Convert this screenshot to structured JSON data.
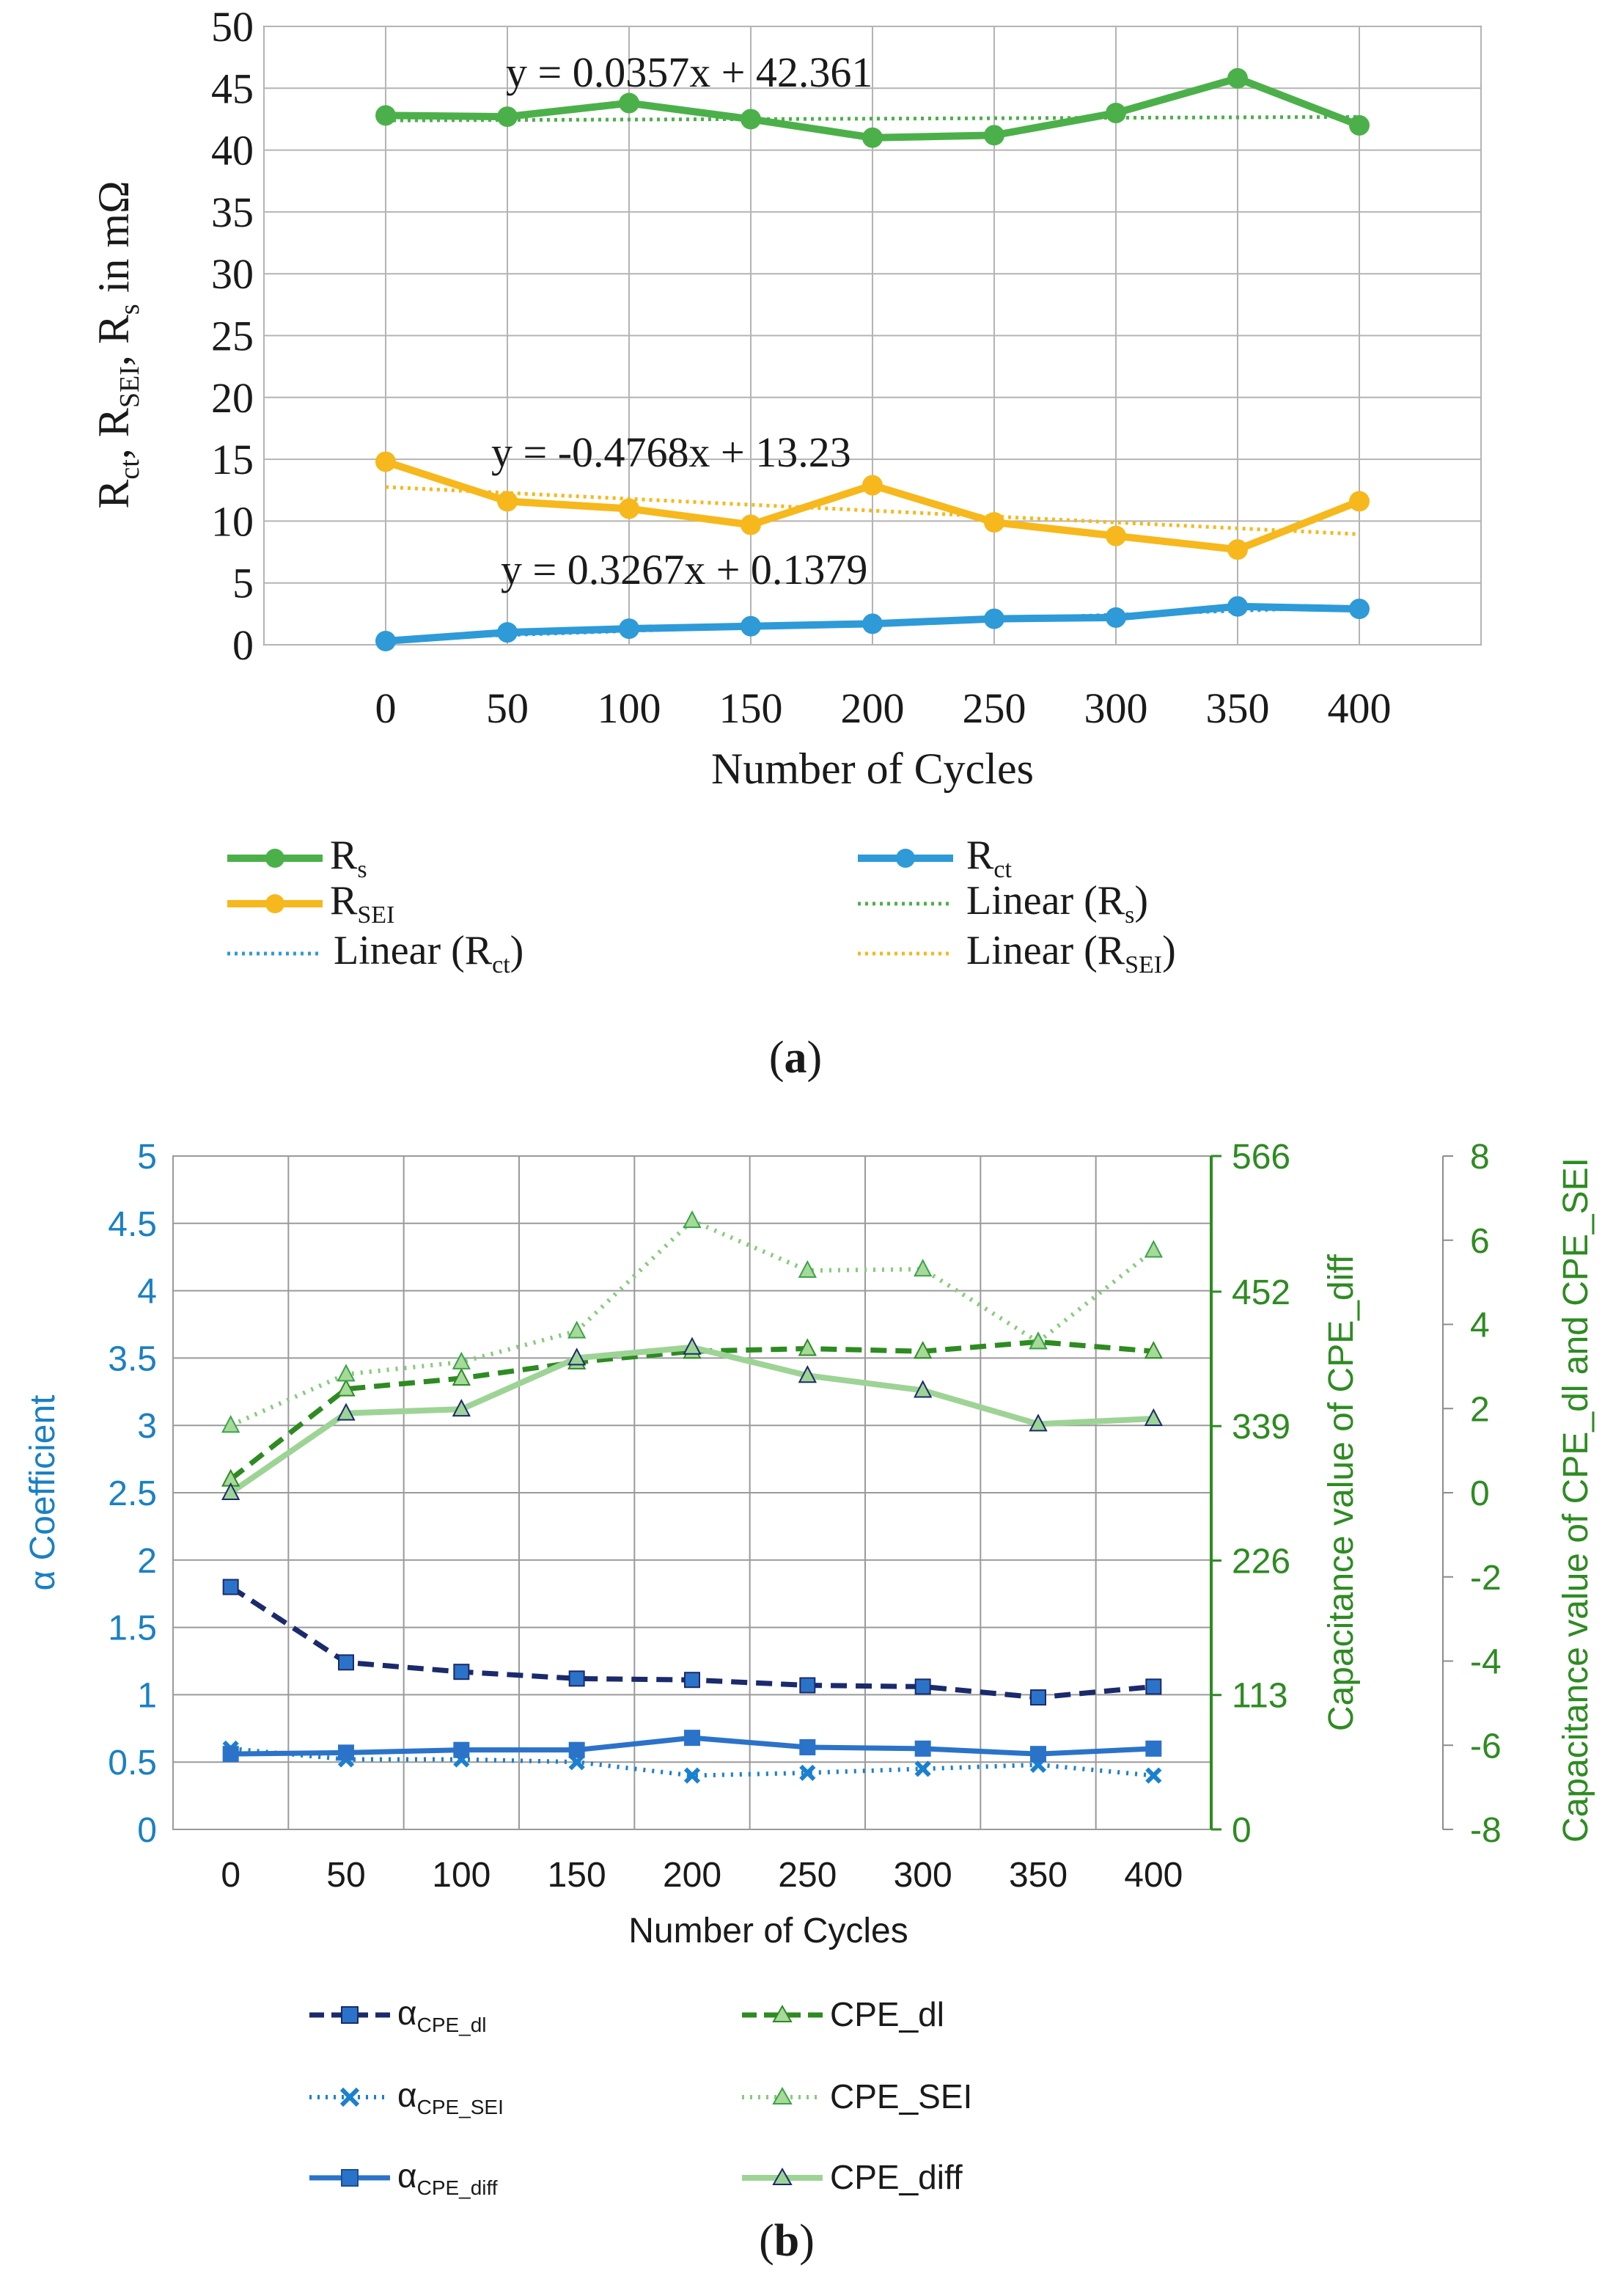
{
  "chart_data": [
    {
      "panel": "(a)",
      "type": "line",
      "title": "",
      "xlabel": "Number of Cycles",
      "ylabel": "R_ct, R_SEI, R_s in mΩ",
      "x": [
        0,
        50,
        100,
        150,
        200,
        250,
        300,
        350,
        400
      ],
      "xticks": [
        "0",
        "50",
        "100",
        "150",
        "200",
        "250",
        "300",
        "350",
        "400"
      ],
      "yticks": [
        "0",
        "5",
        "10",
        "15",
        "20",
        "25",
        "30",
        "35",
        "40",
        "45",
        "50"
      ],
      "ylim": [
        0,
        50
      ],
      "grid": true,
      "legend_position": "bottom",
      "series": [
        {
          "name": "Rs",
          "label_main": "R",
          "label_sub": "s",
          "color": "#4cb04a",
          "style": "solid-marker",
          "values": [
            42.8,
            42.7,
            43.8,
            42.5,
            41.0,
            41.2,
            43.0,
            45.8,
            42.0
          ]
        },
        {
          "name": "RSEI",
          "label_main": "R",
          "label_sub": "SEI",
          "color": "#f6b81c",
          "style": "solid-marker",
          "values": [
            14.8,
            11.6,
            11.0,
            9.7,
            12.9,
            9.9,
            8.8,
            7.7,
            11.6
          ]
        },
        {
          "name": "Rct",
          "label_main": "R",
          "label_sub": "ct",
          "color": "#2e9ad8",
          "style": "solid-marker",
          "values": [
            0.3,
            1.0,
            1.3,
            1.5,
            1.7,
            2.1,
            2.2,
            3.1,
            2.9
          ]
        }
      ],
      "trendlines": [
        {
          "name": "Linear (Rs)",
          "label_main": "Linear (R",
          "label_sub": "s",
          "label_end": ")",
          "color": "#4cb04a",
          "slope": 0.0357,
          "intercept": 42.361,
          "equation": "y = 0.0357x + 42.361"
        },
        {
          "name": "Linear (RSEI)",
          "label_main": "Linear (R",
          "label_sub": "SEI",
          "label_end": ")",
          "color": "#f6b81c",
          "slope": -0.4768,
          "intercept": 13.23,
          "equation": "y = -0.4768x + 13.23"
        },
        {
          "name": "Linear (Rct)",
          "label_main": "Linear (R",
          "label_sub": "ct",
          "label_end": ")",
          "color": "#2e9ad8",
          "slope": 0.3267,
          "intercept": 0.1379,
          "equation": "y = 0.3267x + 0.1379"
        }
      ],
      "ylabel_parts": {
        "r1": "R",
        "s1": "ct",
        "c1": ", ",
        "r2": "R",
        "s2": "SEI",
        "c2": ", ",
        "r3": "R",
        "s3": "s",
        "tail": " in mΩ"
      }
    },
    {
      "panel": "(b)",
      "type": "line",
      "title": "",
      "xlabel": "Number of Cycles",
      "x": [
        0,
        50,
        100,
        150,
        200,
        250,
        300,
        350,
        400
      ],
      "xticks": [
        "0",
        "50",
        "100",
        "150",
        "200",
        "250",
        "300",
        "350",
        "400"
      ],
      "grid": true,
      "legend_position": "bottom",
      "axes": {
        "left": {
          "label": "α Coefficient",
          "color": "#1a80c4",
          "ylim": [
            0,
            5
          ],
          "ticks": [
            "0",
            "0.5",
            "1",
            "1.5",
            "2",
            "2.5",
            "3",
            "3.5",
            "4",
            "4.5",
            "5"
          ]
        },
        "right1": {
          "label": "Capacitance value of CPE_diff",
          "color": "#2e8b22",
          "ylim": [
            0,
            566
          ],
          "ticks": [
            "0",
            "113",
            "226",
            "339",
            "452",
            "566"
          ]
        },
        "right2": {
          "label": "Capacitance value of  CPE_dl and CPE_SEI",
          "color": "#2e8b22",
          "ylim": [
            -8,
            8
          ],
          "ticks": [
            "-8",
            "-6",
            "-4",
            "-2",
            "0",
            "2",
            "4",
            "6",
            "8"
          ]
        }
      },
      "series": [
        {
          "name": "αCPE_dl",
          "label_main": "α",
          "label_sub": "CPE_dl",
          "axis": "left",
          "color": "#1b2a6b",
          "marker": "square",
          "dash": "dashed",
          "values": [
            1.8,
            1.24,
            1.17,
            1.12,
            1.11,
            1.07,
            1.06,
            0.98,
            1.06
          ]
        },
        {
          "name": "αCPE_SEI",
          "label_main": "α",
          "label_sub": "CPE_SEI",
          "axis": "left",
          "color": "#1a80d0",
          "marker": "x",
          "dash": "dotted",
          "values": [
            0.6,
            0.52,
            0.52,
            0.5,
            0.4,
            0.42,
            0.45,
            0.48,
            0.4
          ]
        },
        {
          "name": "αCPE_diff",
          "label_main": "α",
          "label_sub": "CPE_diff",
          "axis": "left",
          "color": "#2b73c9",
          "marker": "square",
          "dash": "solid",
          "values": [
            0.56,
            0.57,
            0.59,
            0.59,
            0.68,
            0.61,
            0.6,
            0.56,
            0.6
          ]
        },
        {
          "name": "CPE_dl",
          "label": "CPE_dl",
          "axis": "left",
          "color": "#2e8b22",
          "marker": "triangle",
          "dash": "dashed",
          "values": [
            2.6,
            3.27,
            3.35,
            3.47,
            3.55,
            3.57,
            3.55,
            3.62,
            3.55
          ]
        },
        {
          "name": "CPE_SEI",
          "label": "CPE_SEI",
          "axis": "left",
          "color": "#86cc7a",
          "marker": "triangle",
          "dash": "dotted",
          "values": [
            3.0,
            3.38,
            3.47,
            3.7,
            4.52,
            4.15,
            4.16,
            3.62,
            4.3
          ]
        },
        {
          "name": "CPE_diff",
          "label": "CPE_diff",
          "axis": "left",
          "color": "#9ed396",
          "marker": "triangle",
          "dash": "solid",
          "values": [
            2.5,
            3.09,
            3.12,
            3.5,
            3.58,
            3.37,
            3.26,
            3.01,
            3.05
          ]
        }
      ]
    }
  ],
  "captions": {
    "a": "(a)",
    "b": "(b)",
    "a_letter": "a",
    "b_letter": "b"
  }
}
